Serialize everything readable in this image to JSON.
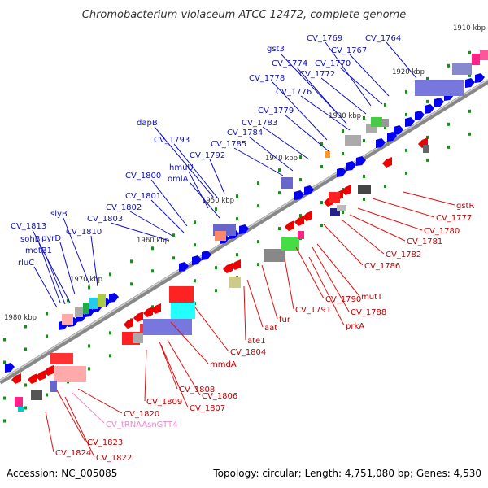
{
  "title": "Chromobacterium violaceum ATCC 12472, complete genome",
  "footer": {
    "accession": "Accession: NC_005085",
    "summary": "Topology: circular; Length: 4,751,080 bp; Genes: 4,530"
  },
  "colors": {
    "forward_label": "#1010c0",
    "reverse_label": "#c00000",
    "rna_label": "#ee88cc",
    "forward_gene": "#0000ee",
    "reverse_gene": "#ee0000",
    "tick": "#228822",
    "backbone": "#888888"
  },
  "kbp_ticks": [
    "1910 kbp",
    "1920 kbp",
    "1930 kbp",
    "1940 kbp",
    "1950 kbp",
    "1960 kbp",
    "1970 kbp",
    "1980 kbp"
  ],
  "forward_labels": [
    "CV_1764",
    "CV_1767",
    "CV_1769",
    "gst3",
    "CV_1770",
    "CV_1772",
    "CV_1774",
    "CV_1776",
    "CV_1778",
    "CV_1779",
    "CV_1783",
    "CV_1784",
    "CV_1785",
    "dapB",
    "CV_1793",
    "CV_1792",
    "hmuU",
    "omlA",
    "CV_1800",
    "CV_1801",
    "CV_1802",
    "CV_1803",
    "slyB",
    "CV_1813",
    "pyrD",
    "CV_1810",
    "sohB",
    "motB1",
    "rluC"
  ],
  "reverse_labels": [
    "gstR",
    "CV_1777",
    "CV_1780",
    "CV_1781",
    "CV_1782",
    "CV_1786",
    "mutT",
    "CV_1790",
    "CV_1788",
    "CV_1791",
    "prkA",
    "fur",
    "aat",
    "ate1",
    "CV_1804",
    "mmdA",
    "CV_1808",
    "CV_1806",
    "CV_1807",
    "CV_1809",
    "CV_1820",
    "CV_1823",
    "CV_1824",
    "CV_1822"
  ],
  "rna_labels": [
    "CV_tRNAAsnGTT4"
  ]
}
